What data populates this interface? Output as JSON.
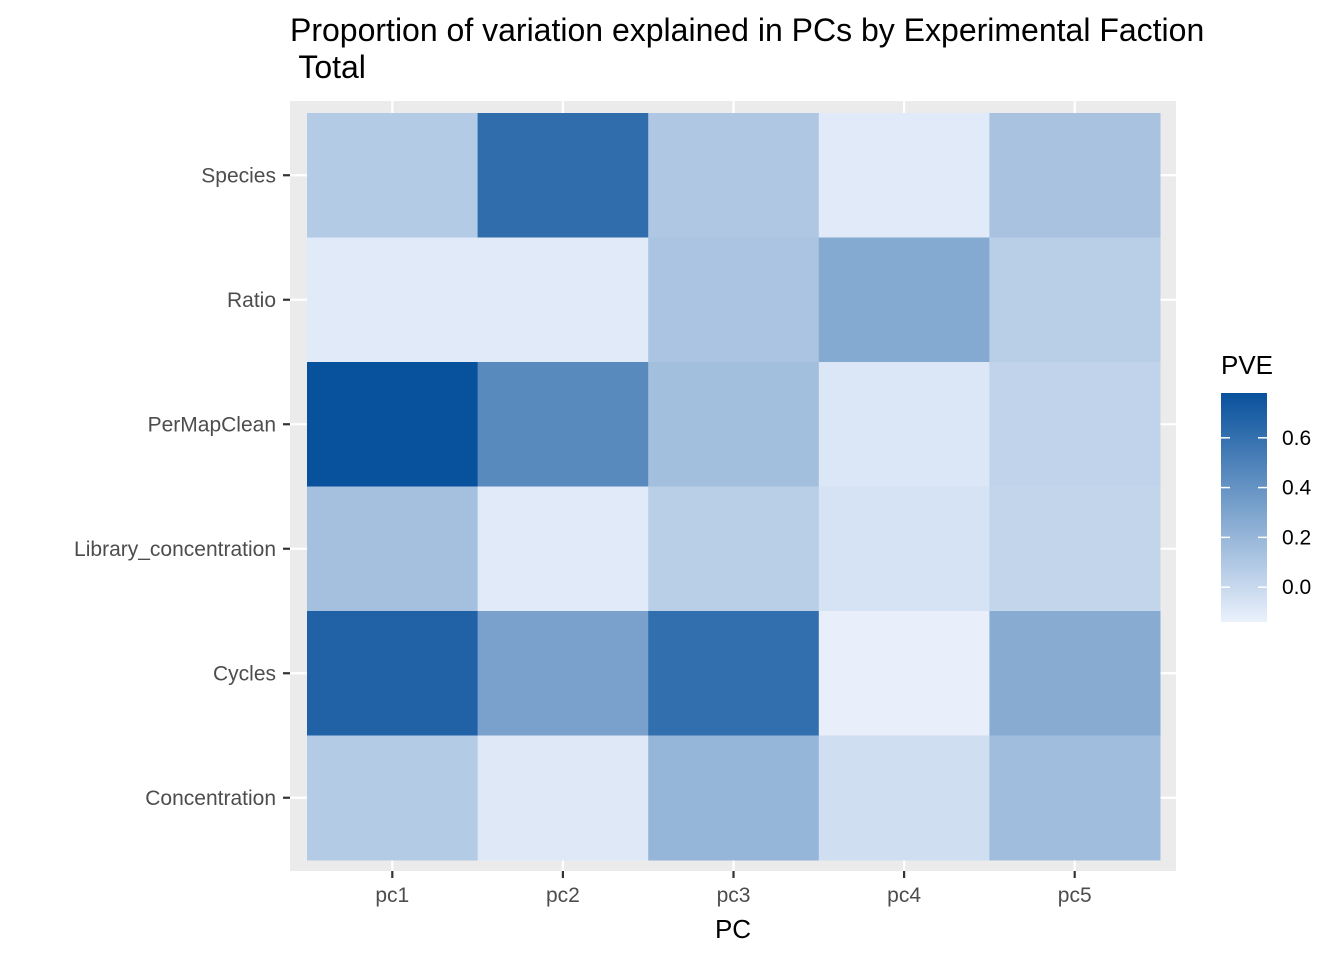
{
  "chart_data": {
    "type": "heatmap",
    "title_lines": [
      "Proportion of variation explained in PCs by Experimental Faction",
      " Total"
    ],
    "xlabel": "PC",
    "ylabel": "",
    "x_categories": [
      "pc1",
      "pc2",
      "pc3",
      "pc4",
      "pc5"
    ],
    "y_categories": [
      "Species",
      "Ratio",
      "PerMapClean",
      "Library_concentration",
      "Cycles",
      "Concentration"
    ],
    "values": [
      [
        0.08,
        0.62,
        0.1,
        -0.1,
        0.13
      ],
      [
        -0.1,
        -0.1,
        0.12,
        0.27,
        0.06
      ],
      [
        0.78,
        0.45,
        0.15,
        -0.08,
        0.03
      ],
      [
        0.14,
        -0.1,
        0.06,
        -0.06,
        0.02
      ],
      [
        0.68,
        0.32,
        0.61,
        -0.13,
        0.26
      ],
      [
        0.08,
        -0.09,
        0.2,
        -0.03,
        0.16
      ]
    ],
    "legend": {
      "title": "PVE",
      "ticks": [
        0.0,
        0.2,
        0.4,
        0.6
      ],
      "tick_labels": [
        "0.0",
        "0.2",
        "0.4",
        "0.6"
      ],
      "min": -0.14,
      "max": 0.78,
      "placement": "right"
    },
    "color_low": "#eaf1fc",
    "color_high": "#08519c",
    "panel_background": "#ebebeb",
    "grid": true
  }
}
